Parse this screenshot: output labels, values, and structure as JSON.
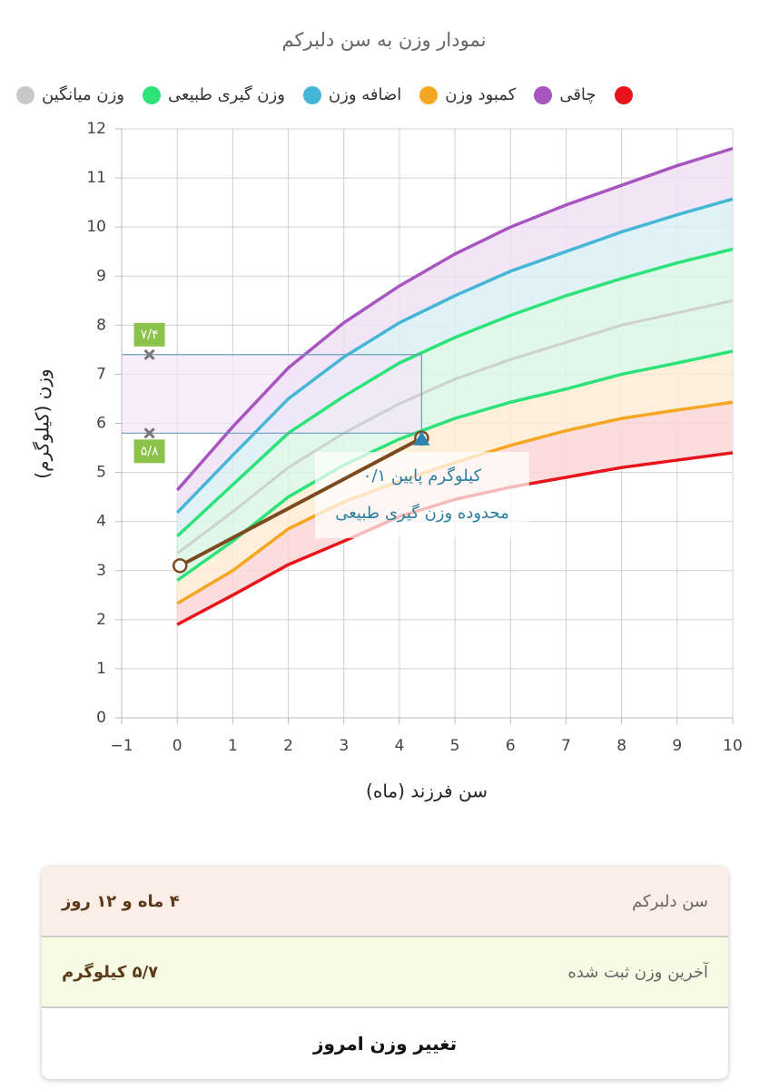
{
  "chart_data": {
    "type": "line",
    "title": "نمودار وزن به سن دلبرکم",
    "x_label": "سن فرزند (ماه)",
    "y_label": "وزن (کیلوگرم)",
    "x": [
      0,
      1,
      2,
      3,
      4,
      5,
      6,
      7,
      8,
      9,
      10
    ],
    "series": [
      {
        "name": "وزن میانگین",
        "color": "#c8c8c8",
        "band": false,
        "values": [
          3.35,
          4.2,
          5.1,
          5.8,
          6.4,
          6.9,
          7.3,
          7.65,
          8.0,
          8.25,
          8.5
        ]
      },
      {
        "name": "وزن گیری طبیعی",
        "color": "#2ee27a",
        "band": true,
        "fill": "#d9f7e6",
        "values": [
          3.7,
          4.75,
          5.8,
          6.55,
          7.23,
          7.75,
          8.2,
          8.6,
          8.95,
          9.27,
          9.55
        ]
      },
      {
        "name": "اضافه وزن",
        "color": "#45b6d6",
        "band": true,
        "fill": "#dcf0f6",
        "values": [
          4.18,
          5.35,
          6.5,
          7.35,
          8.05,
          8.6,
          9.1,
          9.5,
          9.9,
          10.25,
          10.57
        ]
      },
      {
        "name": "کمبود وزن",
        "color": "#f5a623",
        "band": true,
        "fill": "#fdecd3",
        "values": [
          2.33,
          3.0,
          3.85,
          4.4,
          4.82,
          5.2,
          5.55,
          5.85,
          6.1,
          6.27,
          6.43
        ]
      },
      {
        "name": "چاقی",
        "color": "#a855c0",
        "band": true,
        "fill": "#efe0f5",
        "values": [
          4.64,
          5.93,
          7.13,
          8.05,
          8.8,
          9.45,
          10.0,
          10.45,
          10.85,
          11.25,
          11.6
        ]
      },
      {
        "name": null,
        "color": "#e8141c",
        "band": true,
        "values": [
          1.9,
          2.5,
          3.12,
          3.6,
          4.1,
          4.45,
          4.7,
          4.9,
          5.1,
          5.25,
          5.4
        ]
      },
      {
        "name": null,
        "color": "#2ee27a",
        "band": true,
        "fill": "#d9f7e6",
        "legend": false,
        "values": [
          2.8,
          3.6,
          4.5,
          5.15,
          5.68,
          6.1,
          6.43,
          6.7,
          7.0,
          7.23,
          7.47
        ]
      }
    ],
    "lower_band_fill": {
      "#f5a623": "#fbd6d6",
      "#2ee27a": "#fdecd3"
    },
    "child": {
      "color": "#7b4a1f",
      "marker_color": "#2a86b0",
      "x": [
        0.05,
        4.4
      ],
      "values": [
        3.1,
        5.7
      ]
    },
    "reference": {
      "x": -0.5,
      "values": [
        7.4,
        5.8
      ],
      "value_labels": [
        "۷/۴",
        "۵/۸"
      ],
      "color": "#8bc34a"
    },
    "annotation": [
      "۰/۱ کیلوگرم پایین",
      "محدوده وزن گیری طبیعی"
    ],
    "xlim": [
      -1,
      10
    ],
    "xticks": [
      {
        "value": -1,
        "label": "−1"
      },
      0,
      1,
      2,
      3,
      4,
      5,
      6,
      7,
      8,
      9,
      10
    ],
    "ylim": [
      0,
      12
    ],
    "yticks": [
      0,
      1,
      2,
      3,
      4,
      5,
      6,
      7,
      8,
      9,
      10,
      11,
      12
    ],
    "grid": true
  },
  "info_card": {
    "rows": [
      {
        "label": "سن دلبرکم",
        "value": "۴ ماه و ۱۲ روز"
      },
      {
        "label": "آخرین وزن ثبت شده",
        "value": "۵/۷ کیلوگرم"
      }
    ],
    "button": "تغییر وزن امروز"
  }
}
